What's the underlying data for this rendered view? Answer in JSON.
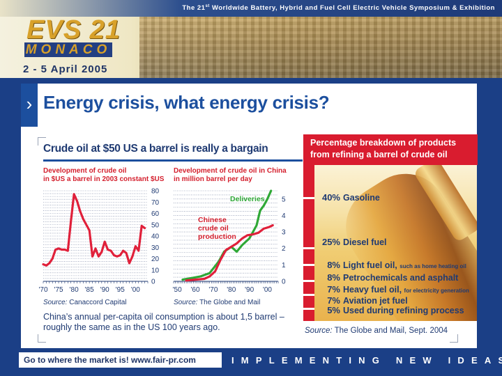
{
  "header": {
    "event_line": "The 21st Worldwide Battery, Hybrid and Fuel Cell Electric Vehicle Symposium & Exhibition",
    "event_line_pre": "The 21",
    "event_line_sup": "st",
    "event_line_post": " Worldwide Battery, Hybrid and Fuel Cell Electric Vehicle Symposium & Exhibition",
    "logo_evs": "EVS 21",
    "logo_monaco": "MONACO",
    "dates": "2 - 5 April 2005"
  },
  "slide": {
    "title": "Energy crisis, what energy crisis?",
    "subtitle": "Crude oil at $50 US a barrel is really a bargain",
    "note": "China’s annual per-capita oil consumption is about 1,5 barrel – roughly the same as in the US 100 years ago."
  },
  "chart_data": [
    {
      "type": "line",
      "title": "Development of crude oil in $US a barrel in 2003 constant $US",
      "title_line1": "Development of crude oil",
      "title_line2": "in $US a barrel in 2003 constant $US",
      "x_tick_labels": [
        "'70",
        "'75",
        "'80",
        "'85",
        "'90",
        "'95",
        "'00"
      ],
      "x_ticks": [
        1970,
        1975,
        1980,
        1985,
        1990,
        1995,
        2000
      ],
      "xlim": [
        1970,
        2004
      ],
      "ylim": [
        0,
        80
      ],
      "y_ticks": [
        0,
        10,
        20,
        30,
        40,
        50,
        60,
        70,
        80
      ],
      "y_axis_side": "right",
      "grid": true,
      "source_prefix": "Source:",
      "source_name": "Canaccord Capital",
      "series": [
        {
          "color": "#e0203a",
          "x": [
            1970,
            1971,
            1972,
            1973,
            1974,
            1975,
            1976,
            1977,
            1978,
            1979,
            1980,
            1981,
            1982,
            1983,
            1984,
            1985,
            1986,
            1987,
            1988,
            1989,
            1990,
            1991,
            1992,
            1993,
            1994,
            1995,
            1996,
            1997,
            1998,
            1999,
            2000,
            2001,
            2002,
            2003
          ],
          "values": [
            15,
            14,
            16,
            20,
            28,
            29,
            28,
            28,
            27,
            53,
            77,
            71,
            62,
            55,
            50,
            45,
            22,
            29,
            22,
            26,
            35,
            28,
            27,
            23,
            22,
            23,
            27,
            25,
            16,
            22,
            31,
            27,
            49,
            47
          ]
        }
      ]
    },
    {
      "type": "line",
      "title": "Development of crude oil in China in million barrel per day",
      "title_line1": "Development of crude oil in China",
      "title_line2": "in million barrel per day",
      "x_tick_labels": [
        "'50",
        "'60",
        "'70",
        "'80",
        "'90",
        "'00"
      ],
      "x_ticks": [
        1950,
        1960,
        1970,
        1980,
        1990,
        2000
      ],
      "xlim": [
        1948,
        2006
      ],
      "ylim": [
        0,
        5.5
      ],
      "y_ticks": [
        0,
        1,
        2,
        3,
        4,
        5
      ],
      "y_axis_side": "right",
      "grid": true,
      "source_prefix": "Source:",
      "source_name": "The Globe and Mail",
      "series": [
        {
          "name": "Deliveries",
          "color": "#2fa836",
          "x": [
            1953,
            1958,
            1963,
            1968,
            1973,
            1976,
            1980,
            1983,
            1986,
            1990,
            1992,
            1994,
            1996,
            1998,
            2000,
            2002
          ],
          "values": [
            0.1,
            0.2,
            0.3,
            0.5,
            1.2,
            1.8,
            2.1,
            1.8,
            2.2,
            2.6,
            3.0,
            3.4,
            4.3,
            4.6,
            5.0,
            5.5
          ]
        },
        {
          "name": "Chinese crude oil production",
          "label_lines": "Chinese\ncrude oil\nproduction",
          "color": "#e0203a",
          "x": [
            1955,
            1960,
            1965,
            1968,
            1971,
            1974,
            1977,
            1980,
            1983,
            1986,
            1989,
            1992,
            1995,
            1998,
            2001,
            2003
          ],
          "values": [
            0.05,
            0.1,
            0.15,
            0.3,
            0.6,
            1.3,
            1.9,
            2.1,
            2.3,
            2.6,
            2.8,
            2.85,
            2.95,
            3.2,
            3.3,
            3.4
          ]
        }
      ]
    }
  ],
  "breakdown": {
    "title": "Percentage breakdown of products from refining a barrel of crude oil",
    "items": [
      {
        "pct": "40%",
        "label": "Gasoline",
        "note": ""
      },
      {
        "pct": "25%",
        "label": "Diesel fuel",
        "note": ""
      },
      {
        "pct": "8%",
        "label": "Light fuel oil,",
        "note": "such as home heating oil"
      },
      {
        "pct": "8%",
        "label": "Petrochemicals and asphalt",
        "note": ""
      },
      {
        "pct": "7%",
        "label": "Heavy fuel oil,",
        "note": "for electricity generation"
      },
      {
        "pct": "7%",
        "label": "Aviation jet fuel",
        "note": ""
      },
      {
        "pct": "5%",
        "label": "Used during refining process",
        "note": ""
      }
    ],
    "values": [
      40,
      25,
      8,
      8,
      7,
      7,
      5
    ],
    "source_prefix": "Source:",
    "source_name": "The Globe and Mail, Sept. 2004"
  },
  "footer": {
    "link_text": "Go to where the market is!   www.fair-pr.com",
    "slogan": "IMPLEMENTING NEW IDEAS"
  },
  "colors": {
    "brand_blue": "#1c4f9e",
    "accent_red": "#d91c2f",
    "deliveries_green": "#2fa836",
    "text_navy": "#1f3a72"
  }
}
